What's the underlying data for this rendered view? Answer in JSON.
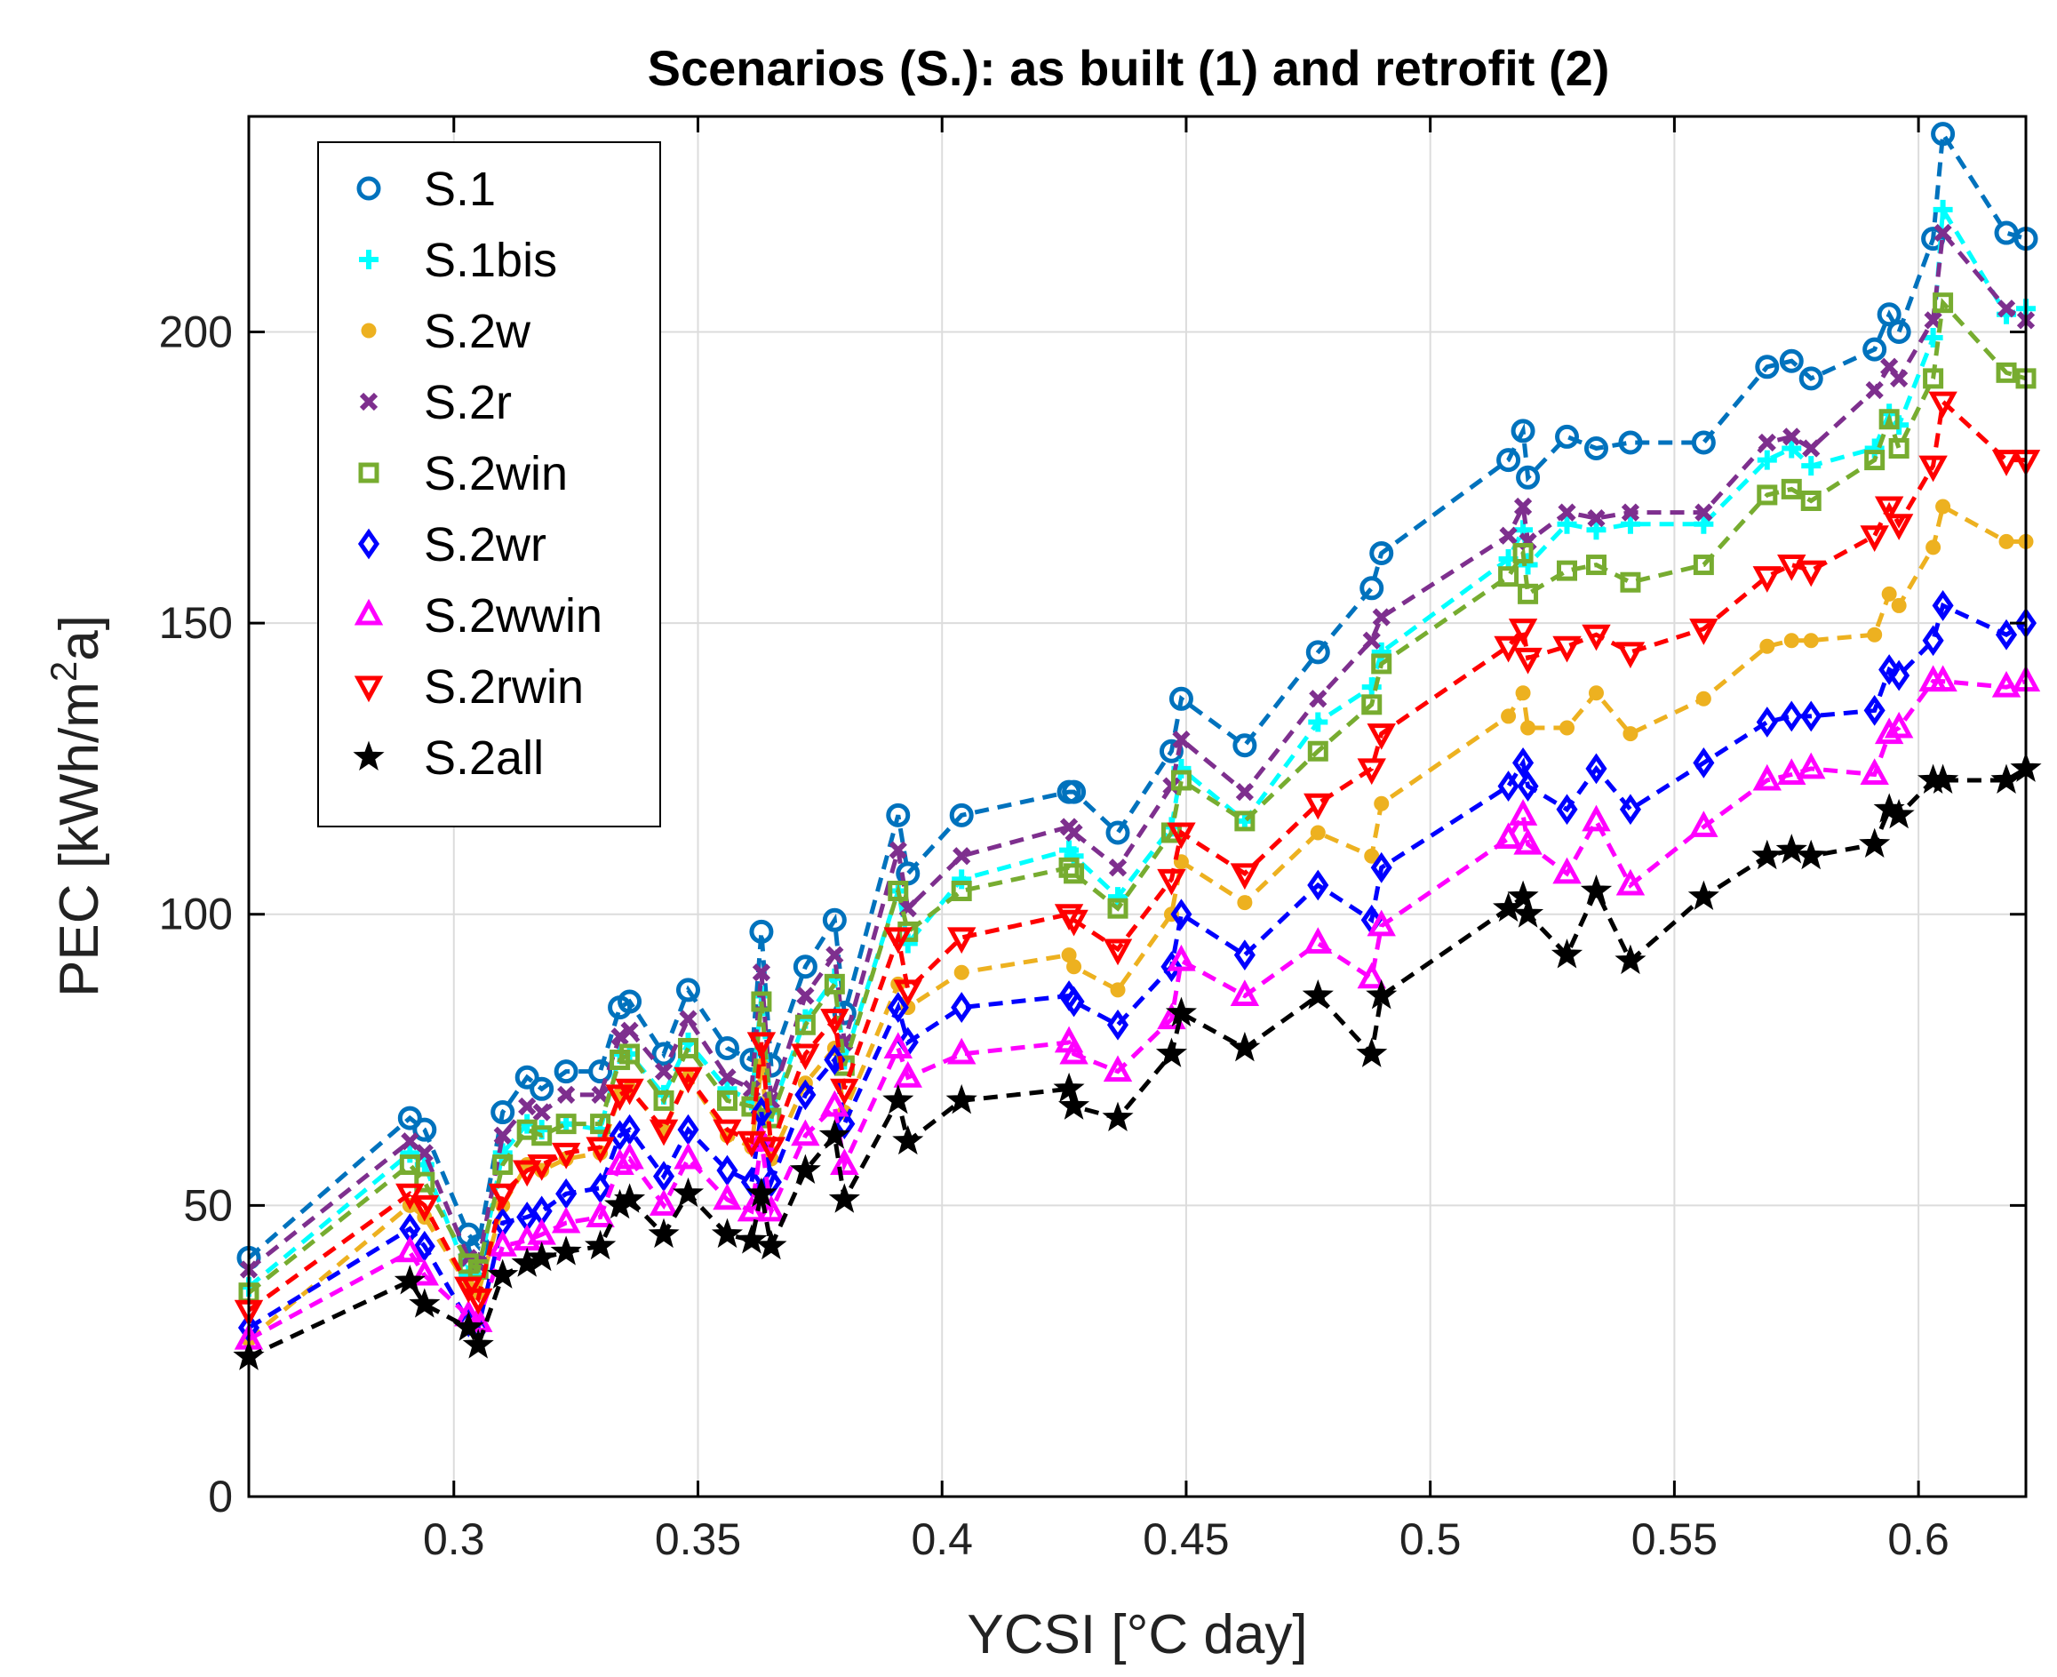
{
  "chart_data": {
    "type": "line",
    "title": "Scenarios (S.): as built (1) and retrofit (2)",
    "xlabel": "YCSI [°C day]",
    "ylabel_main": "PEC [kWh/m",
    "ylabel_sup": "2",
    "ylabel_tail": "a]",
    "xlim": [
      0.258,
      0.622
    ],
    "ylim": [
      0,
      237
    ],
    "xticks": [
      0.3,
      0.35,
      0.4,
      0.45,
      0.5,
      0.55,
      0.6
    ],
    "xtick_labels": [
      "0.3",
      "0.35",
      "0.4",
      "0.45",
      "0.5",
      "0.55",
      "0.6"
    ],
    "yticks": [
      0,
      50,
      100,
      150,
      200
    ],
    "ytick_labels": [
      "0",
      "50",
      "100",
      "150",
      "200"
    ],
    "grid": true,
    "legend_position": "top-left",
    "line_style": "dashed",
    "x": [
      0.258,
      0.291,
      0.294,
      0.303,
      0.305,
      0.31,
      0.315,
      0.318,
      0.323,
      0.33,
      0.334,
      0.336,
      0.343,
      0.348,
      0.356,
      0.361,
      0.363,
      0.365,
      0.372,
      0.378,
      0.38,
      0.391,
      0.393,
      0.404,
      0.426,
      0.427,
      0.436,
      0.447,
      0.449,
      0.462,
      0.477,
      0.488,
      0.49,
      0.516,
      0.519,
      0.52,
      0.528,
      0.534,
      0.541,
      0.556,
      0.569,
      0.574,
      0.578,
      0.591,
      0.594,
      0.596,
      0.603,
      0.605,
      0.618,
      0.622
    ],
    "series": [
      {
        "name": "S.1",
        "marker": "circle",
        "color": "#0072BD",
        "values": [
          41,
          65,
          63,
          45,
          43,
          66,
          72,
          70,
          73,
          73,
          84,
          85,
          76,
          87,
          77,
          75,
          97,
          74,
          91,
          99,
          83,
          117,
          107,
          117,
          121,
          121,
          114,
          128,
          137,
          129,
          145,
          156,
          162,
          178,
          183,
          175,
          182,
          180,
          181,
          181,
          194,
          195,
          192,
          197,
          203,
          200,
          216,
          234,
          217,
          216
        ]
      },
      {
        "name": "S.1bis",
        "marker": "plus",
        "color": "#00FFFF",
        "values": [
          36,
          59,
          57,
          38,
          38,
          59,
          64,
          63,
          64,
          63,
          76,
          76,
          69,
          78,
          70,
          68,
          86,
          66,
          82,
          89,
          75,
          104,
          95,
          106,
          111,
          110,
          103,
          115,
          125,
          116,
          133,
          139,
          145,
          161,
          166,
          160,
          167,
          166,
          167,
          167,
          178,
          180,
          177,
          180,
          186,
          184,
          199,
          221,
          203,
          204
        ]
      },
      {
        "name": "S.2w",
        "marker": "dot",
        "color": "#EDB120",
        "values": [
          27,
          50,
          48,
          36,
          35,
          50,
          57,
          56,
          58,
          59,
          69,
          70,
          63,
          72,
          62,
          60,
          74,
          58,
          71,
          77,
          66,
          88,
          84,
          90,
          93,
          91,
          87,
          100,
          109,
          102,
          114,
          110,
          119,
          134,
          138,
          132,
          132,
          138,
          131,
          137,
          146,
          147,
          147,
          148,
          155,
          153,
          163,
          170,
          164,
          164
        ]
      },
      {
        "name": "S.2r",
        "marker": "x",
        "color": "#7E2F8E",
        "values": [
          39,
          61,
          59,
          41,
          40,
          62,
          67,
          66,
          69,
          69,
          79,
          80,
          73,
          82,
          72,
          70,
          90,
          68,
          86,
          93,
          78,
          111,
          101,
          110,
          115,
          114,
          108,
          122,
          130,
          121,
          137,
          147,
          151,
          165,
          170,
          164,
          169,
          168,
          169,
          169,
          181,
          182,
          180,
          190,
          194,
          192,
          202,
          217,
          204,
          202
        ]
      },
      {
        "name": "S.2win",
        "marker": "square",
        "color": "#77AC30",
        "values": [
          35,
          57,
          54,
          40,
          39,
          57,
          63,
          62,
          64,
          64,
          75,
          76,
          68,
          77,
          68,
          67,
          85,
          65,
          81,
          88,
          74,
          104,
          97,
          104,
          108,
          107,
          101,
          114,
          123,
          116,
          128,
          136,
          143,
          158,
          162,
          155,
          159,
          160,
          157,
          160,
          172,
          173,
          171,
          178,
          185,
          180,
          192,
          205,
          193,
          192
        ]
      },
      {
        "name": "S.2wr",
        "marker": "diamond",
        "color": "#0000FF",
        "values": [
          29,
          46,
          43,
          30,
          29,
          47,
          48,
          49,
          52,
          53,
          62,
          63,
          55,
          63,
          56,
          54,
          66,
          54,
          69,
          75,
          64,
          84,
          78,
          84,
          86,
          85,
          81,
          91,
          100,
          93,
          105,
          99,
          108,
          122,
          126,
          122,
          118,
          125,
          118,
          126,
          133,
          134,
          134,
          135,
          142,
          141,
          147,
          153,
          148,
          150
        ]
      },
      {
        "name": "S.2wwin",
        "marker": "triangle-up",
        "color": "#FF00FF",
        "values": [
          27,
          42,
          38,
          31,
          30,
          43,
          44,
          45,
          47,
          48,
          57,
          58,
          50,
          58,
          51,
          49,
          61,
          49,
          62,
          67,
          57,
          77,
          72,
          76,
          78,
          76,
          73,
          82,
          92,
          86,
          95,
          89,
          98,
          113,
          117,
          112,
          107,
          116,
          105,
          115,
          123,
          124,
          125,
          124,
          131,
          132,
          140,
          140,
          139,
          140
        ]
      },
      {
        "name": "S.2rwin",
        "marker": "triangle-down",
        "color": "#FF0000",
        "values": [
          32,
          52,
          50,
          36,
          34,
          52,
          56,
          57,
          59,
          60,
          69,
          70,
          63,
          72,
          63,
          61,
          78,
          60,
          76,
          82,
          70,
          96,
          87,
          96,
          100,
          99,
          94,
          106,
          114,
          107,
          119,
          125,
          131,
          146,
          149,
          144,
          146,
          148,
          145,
          149,
          158,
          160,
          159,
          165,
          170,
          167,
          177,
          188,
          178,
          178
        ]
      },
      {
        "name": "S.2all",
        "marker": "star",
        "color": "#000000",
        "values": [
          24,
          37,
          33,
          29,
          26,
          38,
          40,
          41,
          42,
          43,
          50,
          51,
          45,
          52,
          45,
          44,
          52,
          43,
          56,
          62,
          51,
          68,
          61,
          68,
          70,
          67,
          65,
          76,
          83,
          77,
          86,
          76,
          86,
          101,
          103,
          100,
          93,
          104,
          92,
          103,
          110,
          111,
          110,
          112,
          118,
          117,
          123,
          123,
          123,
          125
        ]
      }
    ]
  }
}
